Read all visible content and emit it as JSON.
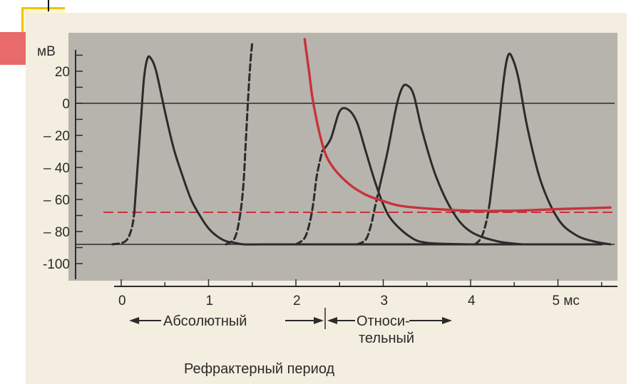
{
  "chart_data": {
    "type": "line",
    "y_unit_label": "мВ",
    "x_unit_label": "мс",
    "x_ticks": [
      {
        "value": 0,
        "label": "0"
      },
      {
        "value": 1,
        "label": "1"
      },
      {
        "value": 2,
        "label": "2"
      },
      {
        "value": 3,
        "label": "3"
      },
      {
        "value": 4,
        "label": "4"
      },
      {
        "value": 5,
        "label": "5 мс"
      }
    ],
    "y_ticks": [
      {
        "value": 20,
        "label": "20"
      },
      {
        "value": 0,
        "label": "0"
      },
      {
        "value": -20,
        "label": "– 20"
      },
      {
        "value": -40,
        "label": "– 40"
      },
      {
        "value": -60,
        "label": "– 60"
      },
      {
        "value": -80,
        "label": "– 80"
      },
      {
        "value": -100,
        "label": "-100"
      }
    ],
    "xlim": [
      -0.2,
      5.6
    ],
    "ylim": [
      -105,
      32
    ],
    "reference_lines": [
      {
        "y": 0,
        "style": "solid",
        "color": "#2b2b2b"
      },
      {
        "y": -88,
        "style": "solid",
        "color": "#2b2b2b"
      },
      {
        "y": -68,
        "style": "dashed",
        "color": "#c8323a"
      }
    ],
    "series": [
      {
        "style": "solid",
        "color": "#2b2b2b",
        "x": [
          0.15,
          0.22,
          0.26,
          0.3,
          0.34,
          0.4,
          0.5,
          0.6,
          0.7,
          0.8,
          0.9,
          1.0,
          1.1,
          1.2,
          1.3,
          1.4,
          1.6,
          2.0,
          5.5
        ],
        "y": [
          -68,
          -15,
          15,
          28,
          28,
          20,
          -5,
          -28,
          -45,
          -60,
          -70,
          -78,
          -83,
          -86,
          -87,
          -88,
          -88,
          -88,
          -88
        ]
      },
      {
        "style": "dashed",
        "color": "#2b2b2b",
        "x": [
          -0.1,
          0.05,
          0.12,
          0.15
        ],
        "y": [
          -88,
          -86,
          -78,
          -68
        ]
      },
      {
        "style": "dashed",
        "color": "#2b2b2b",
        "x": [
          1.2,
          1.3,
          1.36,
          1.4,
          1.43,
          1.46,
          1.48,
          1.5
        ],
        "y": [
          -88,
          -84,
          -70,
          -50,
          -20,
          10,
          26,
          38
        ]
      },
      {
        "style": "dashed",
        "color": "#2b2b2b",
        "x": [
          2.0,
          2.1,
          2.16,
          2.2,
          2.24,
          2.3
        ],
        "y": [
          -88,
          -84,
          -74,
          -62,
          -45,
          -30
        ]
      },
      {
        "style": "solid",
        "color": "#2b2b2b",
        "x": [
          2.3,
          2.4,
          2.5,
          2.6,
          2.7,
          2.8,
          2.9,
          3.0,
          3.1,
          3.3,
          3.5,
          4.0
        ],
        "y": [
          -30,
          -22,
          -5,
          -4,
          -12,
          -30,
          -48,
          -63,
          -73,
          -83,
          -87,
          -88
        ]
      },
      {
        "style": "dashed",
        "color": "#2b2b2b",
        "x": [
          2.7,
          2.8,
          2.86,
          2.9,
          2.95
        ],
        "y": [
          -88,
          -85,
          -76,
          -66,
          -54
        ]
      },
      {
        "style": "solid",
        "color": "#2b2b2b",
        "x": [
          2.95,
          3.05,
          3.15,
          3.22,
          3.28,
          3.35,
          3.45,
          3.6,
          3.8,
          4.0,
          4.3,
          4.6
        ],
        "y": [
          -54,
          -30,
          -2,
          10,
          11,
          5,
          -18,
          -45,
          -68,
          -80,
          -86,
          -88
        ]
      },
      {
        "style": "dashed",
        "color": "#2b2b2b",
        "x": [
          4.05,
          4.12,
          4.18,
          4.22
        ],
        "y": [
          -88,
          -84,
          -74,
          -62
        ]
      },
      {
        "style": "solid",
        "color": "#2b2b2b",
        "x": [
          4.22,
          4.3,
          4.38,
          4.43,
          4.48,
          4.55,
          4.65,
          4.8,
          5.0,
          5.2,
          5.4,
          5.6
        ],
        "y": [
          -62,
          -25,
          15,
          30,
          28,
          15,
          -15,
          -48,
          -72,
          -82,
          -86,
          -88
        ]
      },
      {
        "style": "solid",
        "color": "#c8323a",
        "x": [
          2.1,
          2.15,
          2.2,
          2.3,
          2.4,
          2.6,
          2.8,
          3.0,
          3.2,
          3.6,
          4.0,
          4.5,
          5.0,
          5.6
        ],
        "y": [
          40,
          20,
          0,
          -25,
          -38,
          -50,
          -57,
          -61,
          -64,
          -66,
          -67,
          -67,
          -66,
          -65
        ]
      }
    ],
    "range_annotations": [
      {
        "label": "Абсолютный",
        "x_start": 0.05,
        "x_end": 2.3
      },
      {
        "label": "Относи-",
        "label2": "тельный",
        "x_start": 2.35,
        "x_end": 3.85
      }
    ],
    "caption": "Рефрактерный период",
    "grid": false,
    "legend": "none"
  }
}
